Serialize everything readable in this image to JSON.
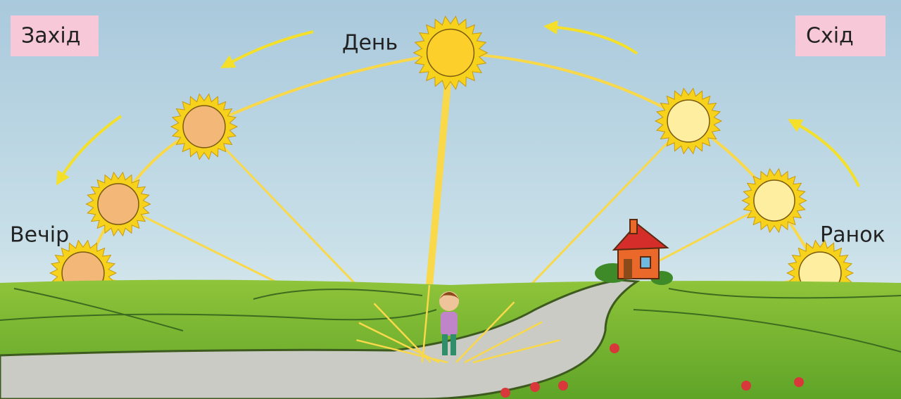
{
  "labels": {
    "west": "Захід",
    "east": "Схід",
    "day": "День",
    "evening": "Вечір",
    "morning": "Ранок"
  }
}
